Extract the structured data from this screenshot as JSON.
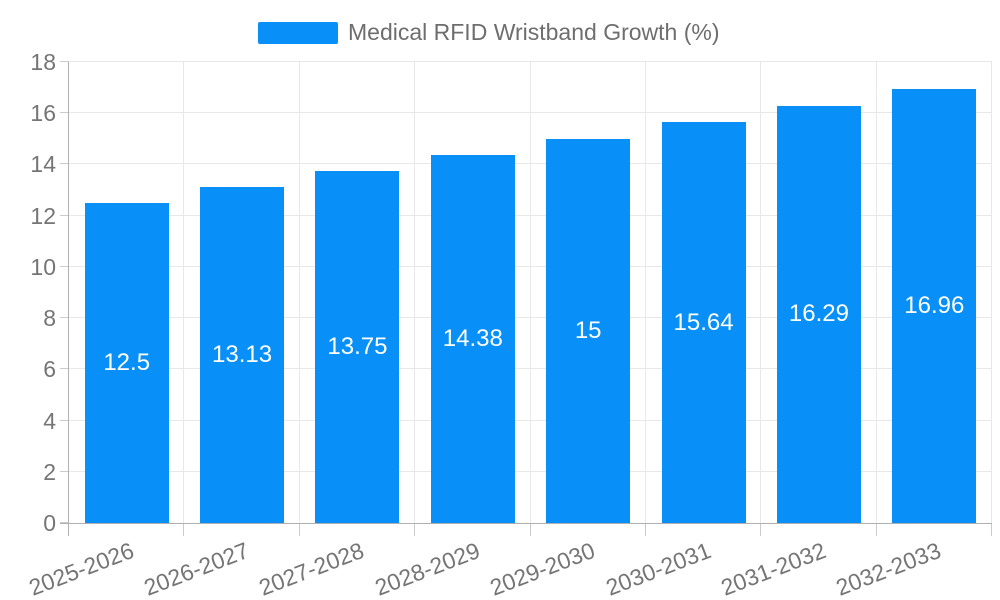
{
  "chart_data": {
    "type": "bar",
    "title": "Medical RFID Wristband Growth (%)",
    "categories": [
      "2025-2026",
      "2026-2027",
      "2027-2028",
      "2028-2029",
      "2029-2030",
      "2030-2031",
      "2031-2032",
      "2032-2033"
    ],
    "series": [
      {
        "name": "Medical RFID Wristband Growth (%)",
        "values": [
          12.5,
          13.13,
          13.75,
          14.38,
          15,
          15.64,
          16.29,
          16.96
        ]
      }
    ],
    "value_labels": [
      "12.5",
      "13.13",
      "13.75",
      "14.38",
      "15",
      "15.64",
      "16.29",
      "16.96"
    ],
    "xlabel": "",
    "ylabel": "",
    "ylim": [
      0,
      18
    ],
    "yticks": [
      0,
      2,
      4,
      6,
      8,
      10,
      12,
      14,
      16,
      18
    ],
    "grid": true,
    "legend_position": "top",
    "x_label_rotation_deg": -21,
    "colors": {
      "bar": "#0890f8",
      "bar_label": "#ffffff",
      "axis_label": "#757575",
      "legend_text": "#6e6e6e",
      "axis_line": "#b0b0b0",
      "tick": "#cccccc",
      "gridline": "#e8e8e8",
      "background": "#ffffff"
    }
  }
}
